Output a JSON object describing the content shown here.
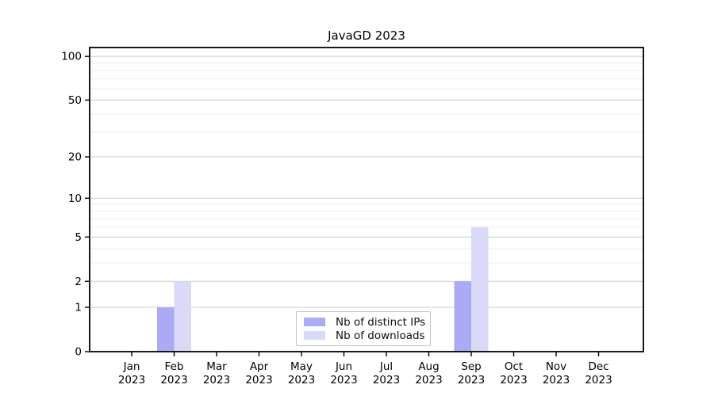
{
  "title": "JavaGD 2023",
  "chart_data": {
    "type": "bar",
    "title": "JavaGD 2023",
    "categories": [
      "Jan",
      "Feb",
      "Mar",
      "Apr",
      "May",
      "Jun",
      "Jul",
      "Aug",
      "Sep",
      "Oct",
      "Nov",
      "Dec"
    ],
    "year_label": "2023",
    "series": [
      {
        "name": "Nb of distinct IPs",
        "color": "#aaaaf5",
        "values": [
          0,
          1,
          0,
          0,
          0,
          0,
          0,
          0,
          2,
          0,
          0,
          0
        ]
      },
      {
        "name": "Nb of downloads",
        "color": "#dadaf8",
        "values": [
          0,
          2,
          0,
          0,
          0,
          0,
          0,
          0,
          6,
          0,
          0,
          0
        ]
      }
    ],
    "xlabel": "",
    "ylabel": "",
    "y_scale": "log10(1+x)",
    "y_ticks": [
      0,
      1,
      2,
      5,
      10,
      20,
      50,
      100
    ],
    "y_minor_gridlines": [
      3,
      4,
      6,
      7,
      8,
      9,
      30,
      40,
      60,
      70,
      80,
      90
    ],
    "ylim": [
      0,
      115
    ],
    "grid": true,
    "legend_position": "bottom-center-inside",
    "colors": {
      "major_grid": "#cccccc",
      "minor_grid": "#ededed",
      "axis": "#000000",
      "text": "#000000",
      "background": "#ffffff"
    }
  }
}
